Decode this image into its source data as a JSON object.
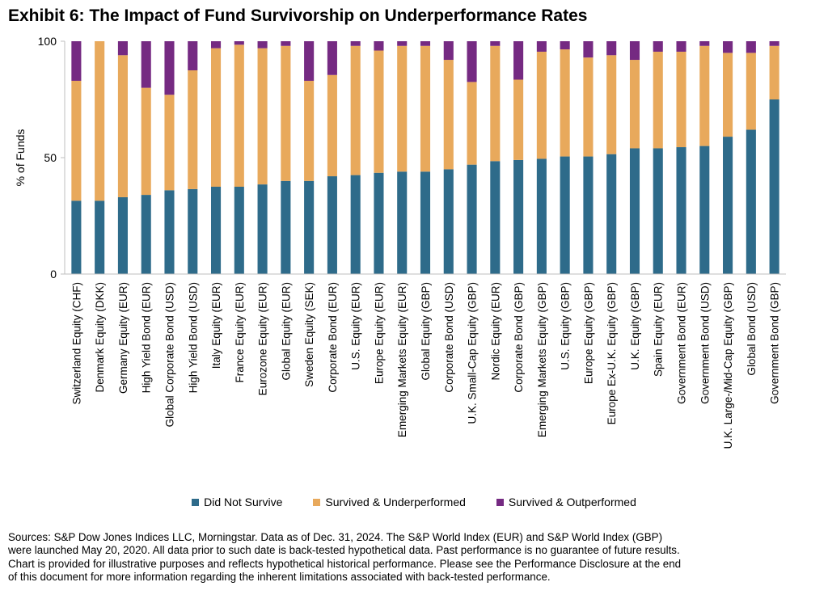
{
  "title": "Exhibit 6: The Impact of Fund Survivorship on Underperformance Rates",
  "sources": "Sources: S&P Dow Jones Indices LLC, Morningstar.  Data as of Dec. 31, 2024.  The S&P World Index (EUR) and S&P World Index (GBP)\nwere launched May 20, 2020.  All data prior to such date is back-tested hypothetical data.  Past performance is no guarantee of future results.\nChart is provided for illustrative purposes and reflects hypothetical historical performance.  Please see the Performance Disclosure at the end\nof this document for more information regarding the inherent limitations associated with back-tested performance.",
  "colors": {
    "did_not_survive": "#2e6b8a",
    "survived_underperformed": "#e8a95c",
    "survived_outperformed": "#752a82",
    "axis": "#bfbfbf"
  },
  "chart_data": {
    "type": "bar",
    "stacked": true,
    "ylabel": "% of Funds",
    "xlabel": "",
    "ylim": [
      0,
      100
    ],
    "yticks": [
      0,
      50,
      100
    ],
    "grid": false,
    "legend_position": "bottom",
    "categories": [
      "Switzerland Equity (CHF)",
      "Denmark Equity (DKK)",
      "Germany Equity (EUR)",
      "High Yield Bond (EUR)",
      "Global Corporate Bond (USD)",
      "High Yield Bond (USD)",
      "Italy Equity (EUR)",
      "France Equity (EUR)",
      "Eurozone Equity (EUR)",
      "Global Equity (EUR)",
      "Sweden Equity (SEK)",
      "Corporate Bond (EUR)",
      "U.S. Equity (EUR)",
      "Europe Equity (EUR)",
      "Emerging Markets Equity (EUR)",
      "Global Equity (GBP)",
      "Corporate Bond (USD)",
      "U.K. Small-Cap Equity (GBP)",
      "Nordic Equity (EUR)",
      "Corporate Bond (GBP)",
      "Emerging Markets Equity (GBP)",
      "U.S. Equity (GBP)",
      "Europe Equity (GBP)",
      "Europe Ex-U.K. Equity (GBP)",
      "U.K. Equity (GBP)",
      "Spain Equity (EUR)",
      "Government Bond (EUR)",
      "Government Bond (USD)",
      "U.K. Large-/Mid-Cap Equity (GBP)",
      "Global Bond (USD)",
      "Government Bond (GBP)"
    ],
    "series": [
      {
        "name": "Did Not Survive",
        "values": [
          31.5,
          31.5,
          33,
          34,
          36,
          36.5,
          37.5,
          37.5,
          38.5,
          40,
          40,
          42,
          42.5,
          43.5,
          44,
          44,
          45,
          47,
          48.5,
          49,
          49.5,
          50.5,
          50.5,
          51.5,
          54,
          54,
          54.5,
          55,
          59,
          62,
          75
        ]
      },
      {
        "name": "Survived & Underperformed",
        "values": [
          51.5,
          68.5,
          61,
          46,
          41,
          51,
          59.5,
          61,
          58.5,
          58,
          43,
          43.5,
          55.5,
          52.5,
          54,
          54,
          47,
          35.5,
          49.5,
          34.5,
          46,
          46,
          42.5,
          42.5,
          38,
          41.5,
          41,
          43,
          36,
          33,
          23
        ]
      },
      {
        "name": "Survived & Outperformed",
        "values": [
          17,
          0,
          6,
          20,
          23,
          12.5,
          3,
          1.5,
          3,
          2,
          17,
          14.5,
          2,
          4,
          2,
          2,
          8,
          17.5,
          2,
          16.5,
          4.5,
          3.5,
          7,
          6,
          8,
          4.5,
          4.5,
          2,
          5,
          5,
          2
        ]
      }
    ]
  }
}
